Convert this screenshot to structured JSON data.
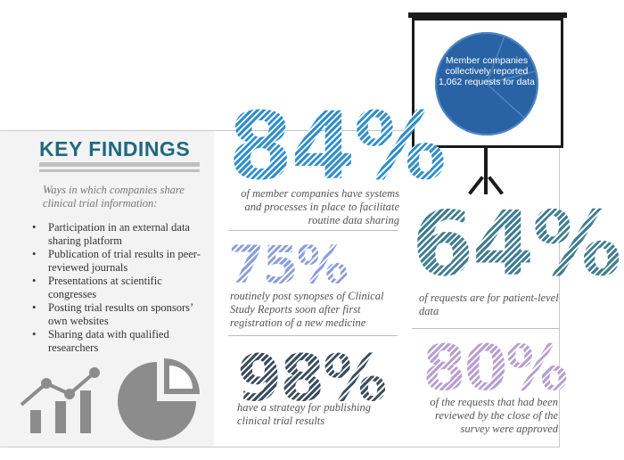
{
  "key_findings": {
    "title": "KEY FINDINGS",
    "intro": "Ways in which companies share clinical trial information:",
    "items": [
      "Participation in an external data sharing platform",
      "Publication of trial results in peer-reviewed journals",
      "Presentations at scientific congresses",
      "Posting trial results on sponsors’ own websites",
      "Sharing data with qualified researchers"
    ]
  },
  "stats": {
    "s84": {
      "value": "84%",
      "caption": "of member companies have systems and processes in place to facilitate routine data sharing"
    },
    "s75": {
      "value": "75%",
      "caption": "routinely post synopses of Clinical Study Reports soon after first registration of a new medicine"
    },
    "s98": {
      "value": "98%",
      "caption": "have a strategy for publishing clinical trial results"
    },
    "s64": {
      "value": "64%",
      "caption": "of requests are for patient-level data"
    },
    "s80": {
      "value": "80%",
      "caption": "of the requests that had been reviewed by the close of the survey were approved"
    }
  },
  "board": {
    "text": "Member companies collectively reported 1,062 requests for data"
  },
  "icons": {
    "line_chart": "line-bar-chart-icon",
    "pie_chart": "pie-chart-icon",
    "board": "presentation-board-icon"
  },
  "colors": {
    "title": "#1f6a80",
    "s84": "#2f8fcc",
    "s75": "#8a9edc",
    "s98": "#3a4c5e",
    "s64": "#3f7d90",
    "s80": "#b89ed0",
    "circle": "#2a63a5",
    "icon_gray": "#8c8c8c"
  }
}
